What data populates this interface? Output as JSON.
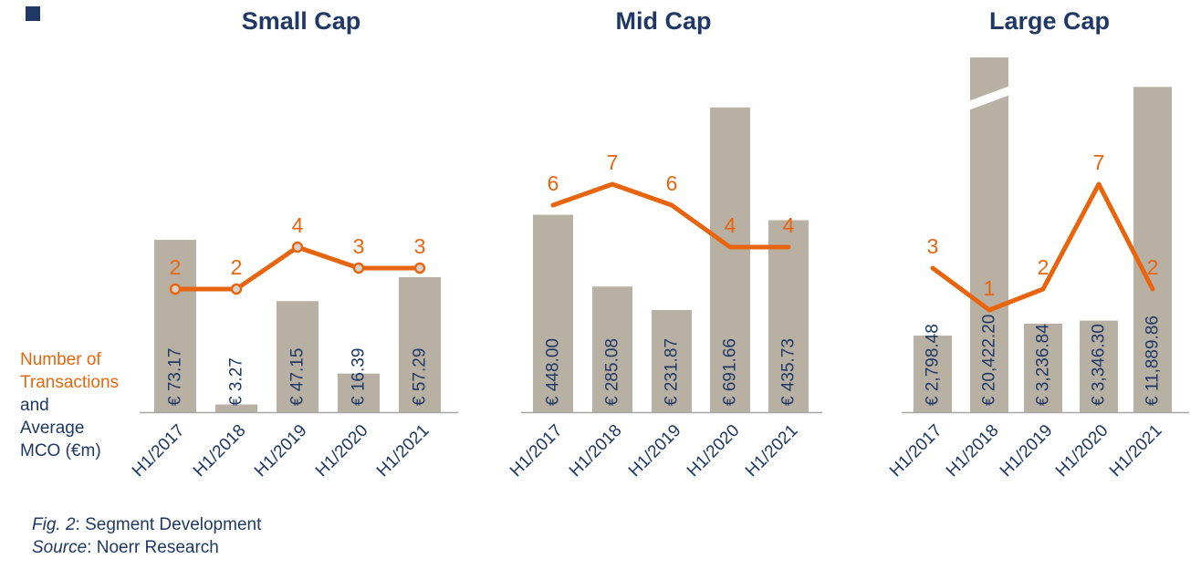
{
  "page": {
    "left_note": {
      "line1": "Number of",
      "line2": "Transactions",
      "line3": "and",
      "line4": "Average",
      "line5": "MCO (€m)"
    },
    "footer": {
      "fig_label": "Fig. 2",
      "fig_text": ": Segment Development",
      "source_label": "Source",
      "source_text": ": Noerr Research"
    },
    "colors": {
      "navy": "#1f3864",
      "orange": "#e8650f",
      "bar": "#b9b0a4",
      "marker_fill": "#d9d2c9",
      "axis": "#a6a6a6",
      "break_stripe": "#ffffff"
    }
  },
  "chart_data": [
    {
      "type": "bar",
      "title": "Small Cap",
      "categories": [
        "H1/2017",
        "H1/2018",
        "H1/2019",
        "H1/2020",
        "H1/2021"
      ],
      "bar_series": {
        "name": "Average MCO (€m)",
        "values": [
          73.17,
          3.27,
          47.15,
          16.39,
          57.29
        ],
        "labels": [
          "€ 73.17",
          "€ 3.27",
          "€ 47.15",
          "€ 16.39",
          "€ 57.29"
        ]
      },
      "line_series": {
        "name": "Number of Transactions",
        "values": [
          2,
          2,
          4,
          3,
          3
        ]
      },
      "legend_position": "none",
      "grid": false
    },
    {
      "type": "bar",
      "title": "Mid Cap",
      "categories": [
        "H1/2017",
        "H1/2018",
        "H1/2019",
        "H1/2020",
        "H1/2021"
      ],
      "bar_series": {
        "name": "Average MCO (€m)",
        "values": [
          448.0,
          285.08,
          231.87,
          691.66,
          435.73
        ],
        "labels": [
          "€ 448.00",
          "€ 285.08",
          "€ 231.87",
          "€ 691.66",
          "€ 435.73"
        ]
      },
      "line_series": {
        "name": "Number of Transactions",
        "values": [
          6,
          7,
          6,
          4,
          4
        ]
      },
      "legend_position": "none",
      "grid": false
    },
    {
      "type": "bar",
      "title": "Large Cap",
      "categories": [
        "H1/2017",
        "H1/2018",
        "H1/2019",
        "H1/2020",
        "H1/2021"
      ],
      "bar_series": {
        "name": "Average MCO (€m)",
        "values": [
          2798.48,
          20422.2,
          3236.84,
          3346.3,
          11889.86
        ],
        "labels": [
          "€ 2,798.48",
          "€ 20,422.20",
          "€ 3,236.84",
          "€ 3,346.30",
          "€ 11,889.86"
        ]
      },
      "line_series": {
        "name": "Number of Transactions",
        "values": [
          3,
          1,
          2,
          7,
          2
        ]
      },
      "axis_break_bar_index": 1,
      "legend_position": "none",
      "grid": false
    }
  ]
}
